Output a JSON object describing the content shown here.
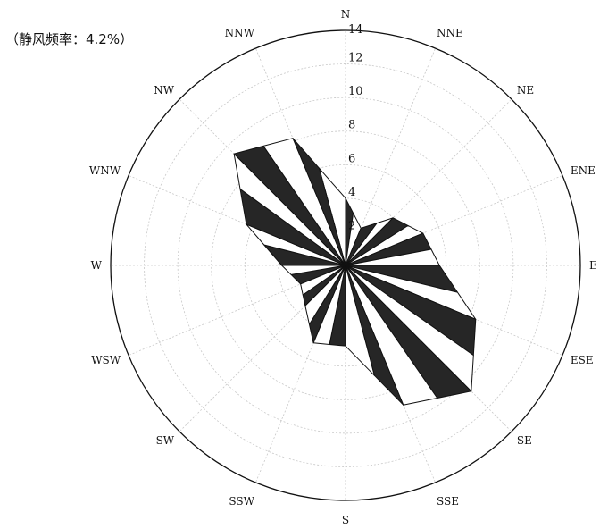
{
  "calm_note": "（静风频率：4.2%）",
  "chart_data": {
    "type": "radar",
    "subtype": "wind-rose",
    "directions": [
      "N",
      "NNE",
      "NE",
      "ENE",
      "E",
      "ESE",
      "SE",
      "SSE",
      "S",
      "SSW",
      "SW",
      "WSW",
      "W",
      "WNW",
      "NW",
      "NNW"
    ],
    "values": [
      4.0,
      2.4,
      4.0,
      5.0,
      5.6,
      8.4,
      10.6,
      9.0,
      4.8,
      5.0,
      3.4,
      2.9,
      3.8,
      6.4,
      9.4,
      8.2
    ],
    "r_ticks": [
      "2",
      "4",
      "6",
      "8",
      "10",
      "12",
      "14"
    ],
    "rlim": [
      0,
      14
    ],
    "grid": true,
    "sector_fill": [
      "#ffffff",
      "#262626"
    ]
  }
}
